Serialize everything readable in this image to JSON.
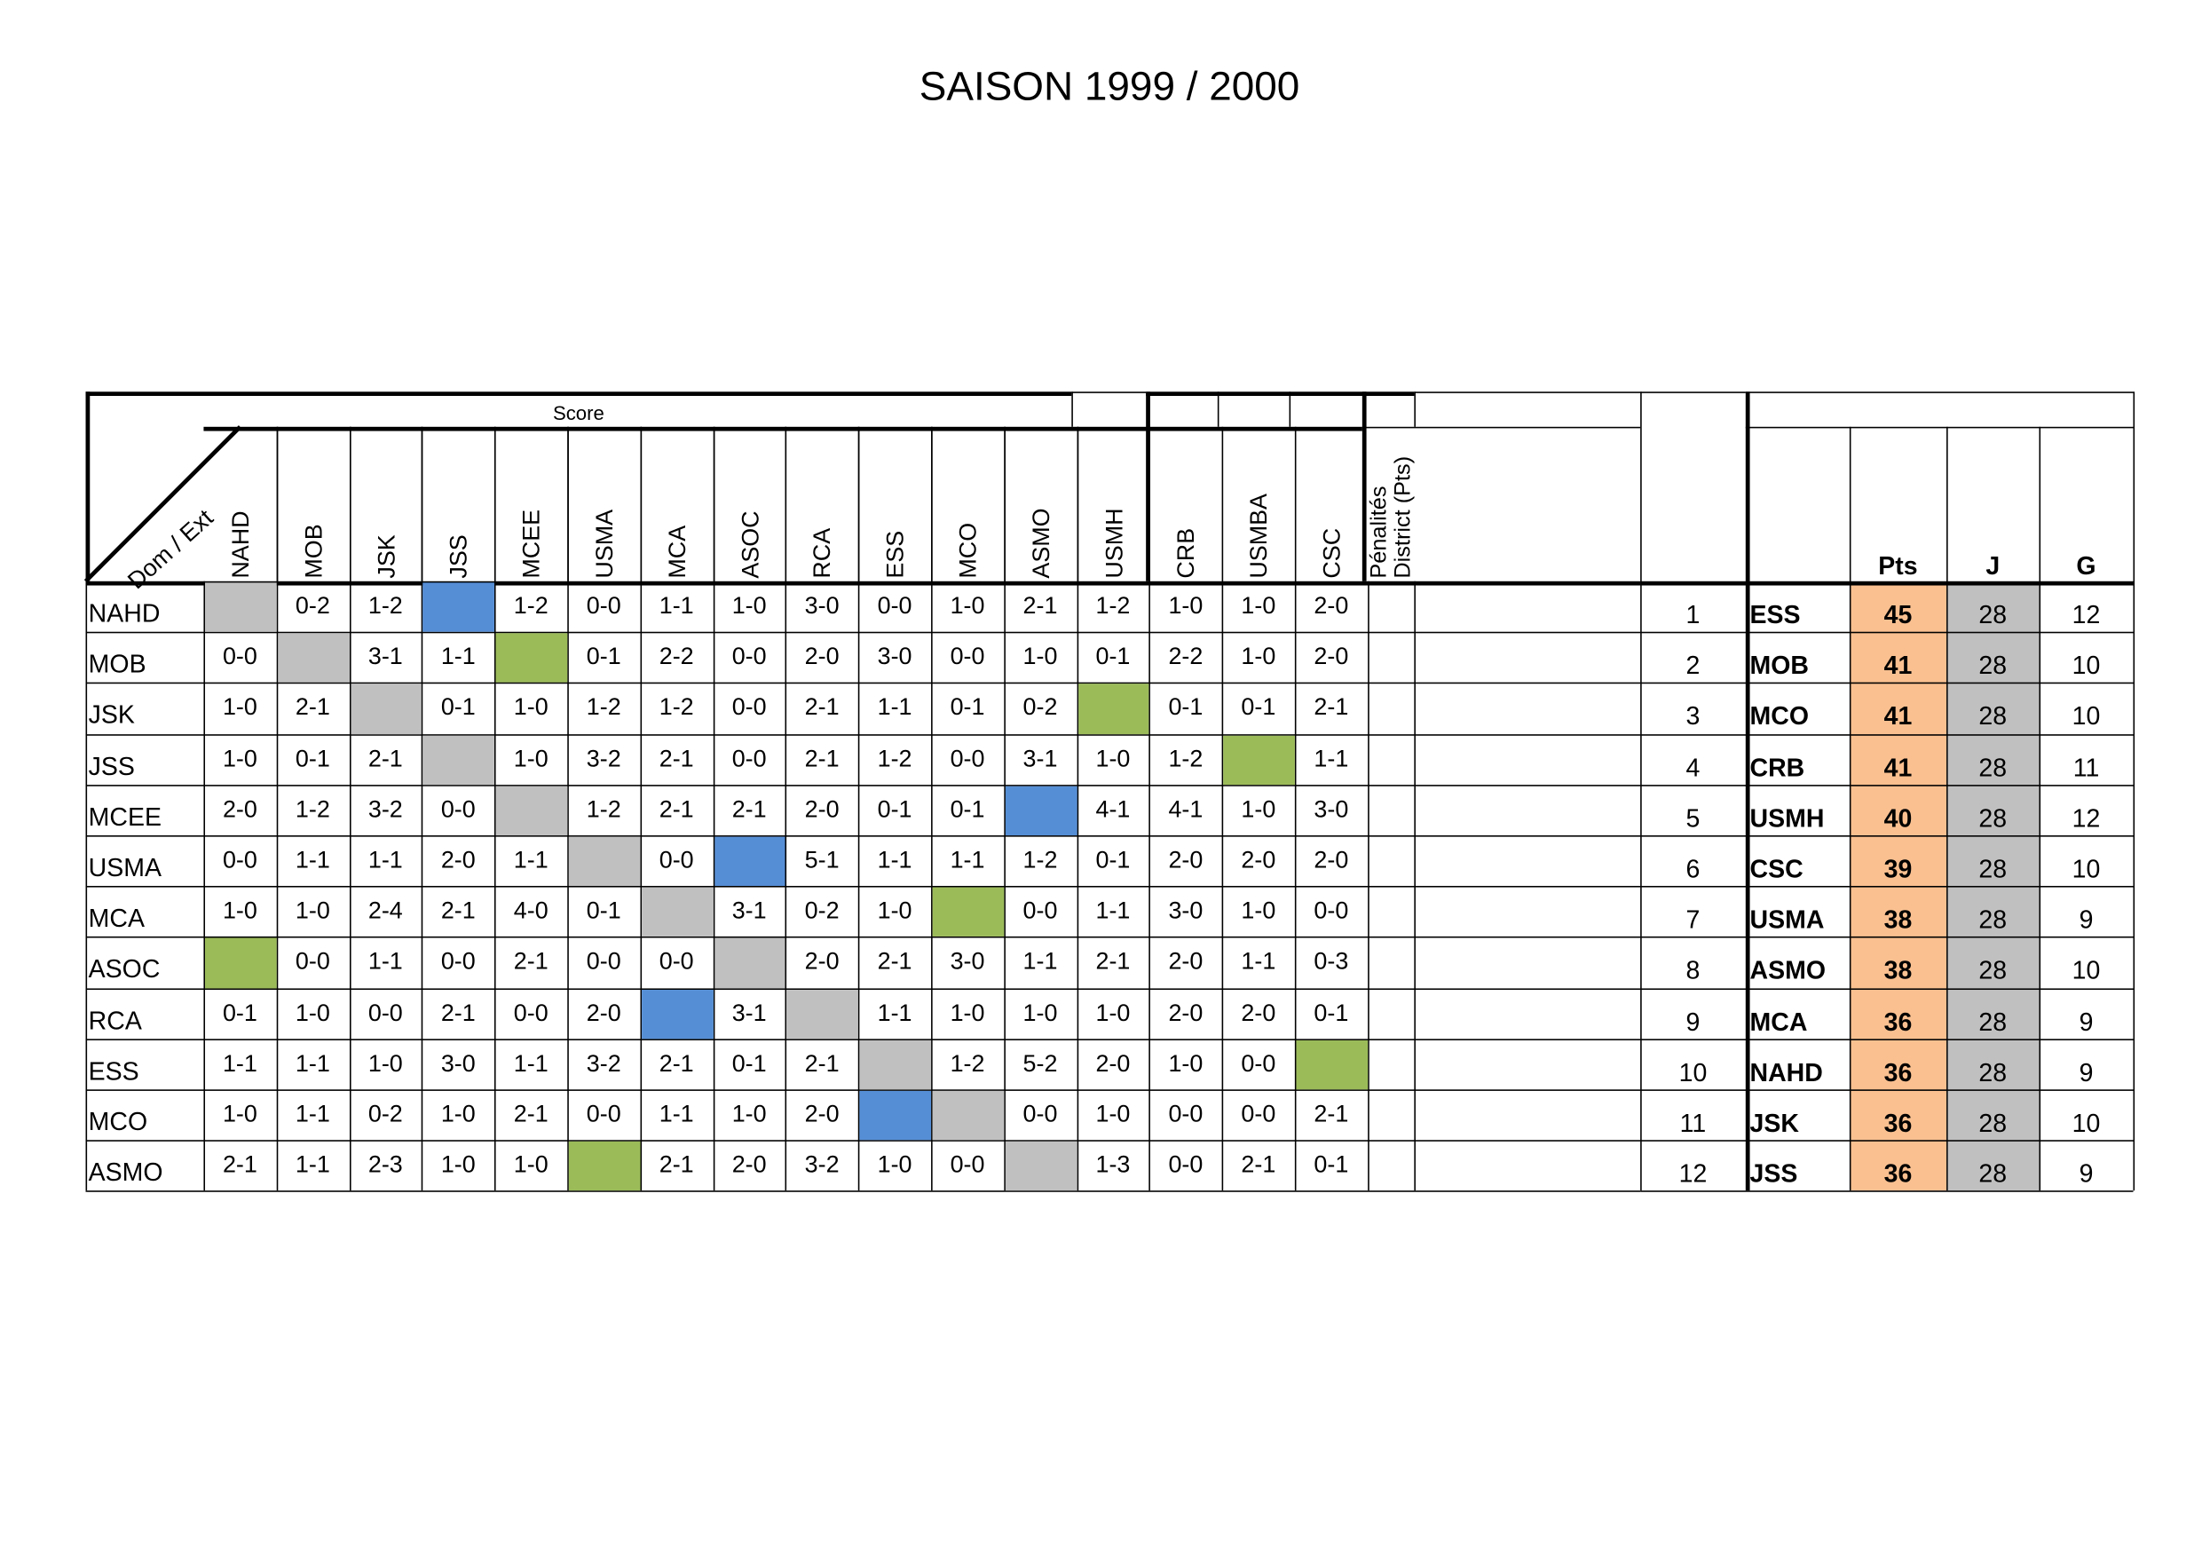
{
  "title": "SAISON 1999 / 2000",
  "score_label": "Score",
  "corner_label": "Dom / Ext",
  "penalties_label": "Pénalités District (Pts)",
  "teams": [
    "NAHD",
    "MOB",
    "JSK",
    "JSS",
    "MCEE",
    "USMA",
    "MCA",
    "ASOC",
    "RCA",
    "ESS",
    "MCO",
    "ASMO",
    "USMH",
    "CRB",
    "USMBA",
    "CSC"
  ],
  "row_teams": [
    "NAHD",
    "MOB",
    "JSK",
    "JSS",
    "MCEE",
    "USMA",
    "MCA",
    "ASOC",
    "RCA",
    "ESS",
    "MCO",
    "ASMO"
  ],
  "cells": [
    [
      "self",
      "0-2",
      "1-2",
      "blue",
      "1-2",
      "0-0",
      "1-1",
      "1-0",
      "3-0",
      "0-0",
      "1-0",
      "2-1",
      "1-2",
      "1-0",
      "1-0",
      "2-0"
    ],
    [
      "0-0",
      "self",
      "3-1",
      "1-1",
      "green",
      "0-1",
      "2-2",
      "0-0",
      "2-0",
      "3-0",
      "0-0",
      "1-0",
      "0-1",
      "2-2",
      "1-0",
      "2-0"
    ],
    [
      "1-0",
      "2-1",
      "self",
      "0-1",
      "1-0",
      "1-2",
      "1-2",
      "0-0",
      "2-1",
      "1-1",
      "0-1",
      "0-2",
      "green",
      "0-1",
      "0-1",
      "2-1"
    ],
    [
      "1-0",
      "0-1",
      "2-1",
      "self",
      "1-0",
      "3-2",
      "2-1",
      "0-0",
      "2-1",
      "1-2",
      "0-0",
      "3-1",
      "1-0",
      "1-2",
      "green",
      "1-1"
    ],
    [
      "2-0",
      "1-2",
      "3-2",
      "0-0",
      "self",
      "1-2",
      "2-1",
      "2-1",
      "2-0",
      "0-1",
      "0-1",
      "blue",
      "4-1",
      "4-1",
      "1-0",
      "3-0"
    ],
    [
      "0-0",
      "1-1",
      "1-1",
      "2-0",
      "1-1",
      "self",
      "0-0",
      "blue",
      "5-1",
      "1-1",
      "1-1",
      "1-2",
      "0-1",
      "2-0",
      "2-0",
      "2-0"
    ],
    [
      "1-0",
      "1-0",
      "2-4",
      "2-1",
      "4-0",
      "0-1",
      "self",
      "3-1",
      "0-2",
      "1-0",
      "green",
      "0-0",
      "1-1",
      "3-0",
      "1-0",
      "0-0"
    ],
    [
      "green",
      "0-0",
      "1-1",
      "0-0",
      "2-1",
      "0-0",
      "0-0",
      "self",
      "2-0",
      "2-1",
      "3-0",
      "1-1",
      "2-1",
      "2-0",
      "1-1",
      "0-3"
    ],
    [
      "0-1",
      "1-0",
      "0-0",
      "2-1",
      "0-0",
      "2-0",
      "blue",
      "3-1",
      "self",
      "1-1",
      "1-0",
      "1-0",
      "1-0",
      "2-0",
      "2-0",
      "0-1"
    ],
    [
      "1-1",
      "1-1",
      "1-0",
      "3-0",
      "1-1",
      "3-2",
      "2-1",
      "0-1",
      "2-1",
      "self",
      "1-2",
      "5-2",
      "2-0",
      "1-0",
      "0-0",
      "green"
    ],
    [
      "1-0",
      "1-1",
      "0-2",
      "1-0",
      "2-1",
      "0-0",
      "1-1",
      "1-0",
      "2-0",
      "blue",
      "self",
      "0-0",
      "1-0",
      "0-0",
      "0-0",
      "2-1"
    ],
    [
      "2-1",
      "1-1",
      "2-3",
      "1-0",
      "1-0",
      "green",
      "2-1",
      "2-0",
      "3-2",
      "1-0",
      "0-0",
      "self",
      "1-3",
      "0-0",
      "2-1",
      "0-1"
    ]
  ],
  "standings": {
    "headers": {
      "pts": "Pts",
      "j": "J",
      "g": "G"
    },
    "rows": [
      {
        "rank": "1",
        "team": "ESS",
        "pts": "45",
        "j": "28",
        "g": "12"
      },
      {
        "rank": "2",
        "team": "MOB",
        "pts": "41",
        "j": "28",
        "g": "10"
      },
      {
        "rank": "3",
        "team": "MCO",
        "pts": "41",
        "j": "28",
        "g": "10"
      },
      {
        "rank": "4",
        "team": "CRB",
        "pts": "41",
        "j": "28",
        "g": "11"
      },
      {
        "rank": "5",
        "team": "USMH",
        "pts": "40",
        "j": "28",
        "g": "12"
      },
      {
        "rank": "6",
        "team": "CSC",
        "pts": "39",
        "j": "28",
        "g": "10"
      },
      {
        "rank": "7",
        "team": "USMA",
        "pts": "38",
        "j": "28",
        "g": "9"
      },
      {
        "rank": "8",
        "team": "ASMO",
        "pts": "38",
        "j": "28",
        "g": "10"
      },
      {
        "rank": "9",
        "team": "MCA",
        "pts": "36",
        "j": "28",
        "g": "9"
      },
      {
        "rank": "10",
        "team": "NAHD",
        "pts": "36",
        "j": "28",
        "g": "9"
      },
      {
        "rank": "11",
        "team": "JSK",
        "pts": "36",
        "j": "28",
        "g": "10"
      },
      {
        "rank": "12",
        "team": "JSS",
        "pts": "36",
        "j": "28",
        "g": "9"
      }
    ]
  },
  "colors": {
    "self_cell": "#c0c0c0",
    "blue_cell": "#558ed5",
    "green_cell": "#9bbb59",
    "pts_fill": "#fac090",
    "j_fill": "#c0c0c0"
  }
}
